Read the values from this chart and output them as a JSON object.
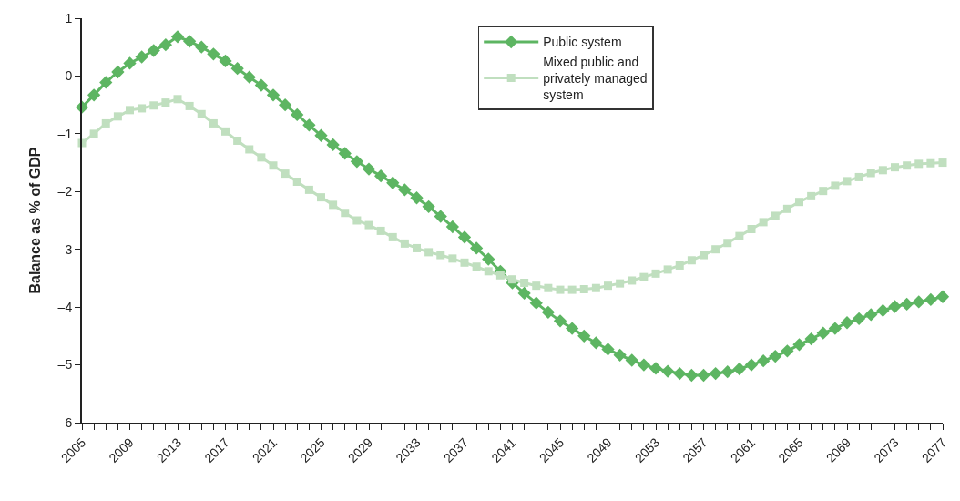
{
  "chart_data": {
    "type": "line",
    "ylabel": "Balance as % of GDP",
    "x": [
      2005,
      2006,
      2007,
      2008,
      2009,
      2010,
      2011,
      2012,
      2013,
      2014,
      2015,
      2016,
      2017,
      2018,
      2019,
      2020,
      2021,
      2022,
      2023,
      2024,
      2025,
      2026,
      2027,
      2028,
      2029,
      2030,
      2031,
      2032,
      2033,
      2034,
      2035,
      2036,
      2037,
      2038,
      2039,
      2040,
      2041,
      2042,
      2043,
      2044,
      2045,
      2046,
      2047,
      2048,
      2049,
      2050,
      2051,
      2052,
      2053,
      2054,
      2055,
      2056,
      2057,
      2058,
      2059,
      2060,
      2061,
      2062,
      2063,
      2064,
      2065,
      2066,
      2067,
      2068,
      2069,
      2070,
      2071,
      2072,
      2073,
      2074,
      2075,
      2076,
      2077
    ],
    "series": [
      {
        "name": "Public system",
        "color": "#5db562",
        "marker": "diamond",
        "values": [
          -0.54,
          -0.33,
          -0.11,
          0.07,
          0.22,
          0.33,
          0.44,
          0.54,
          0.68,
          0.6,
          0.5,
          0.38,
          0.26,
          0.13,
          -0.02,
          -0.16,
          -0.33,
          -0.5,
          -0.67,
          -0.85,
          -1.03,
          -1.19,
          -1.34,
          -1.48,
          -1.61,
          -1.73,
          -1.85,
          -1.97,
          -2.11,
          -2.26,
          -2.43,
          -2.61,
          -2.79,
          -2.98,
          -3.17,
          -3.38,
          -3.58,
          -3.76,
          -3.93,
          -4.09,
          -4.24,
          -4.37,
          -4.5,
          -4.62,
          -4.73,
          -4.83,
          -4.92,
          -5.0,
          -5.06,
          -5.11,
          -5.15,
          -5.18,
          -5.18,
          -5.15,
          -5.12,
          -5.07,
          -5.0,
          -4.93,
          -4.85,
          -4.76,
          -4.65,
          -4.55,
          -4.45,
          -4.37,
          -4.27,
          -4.2,
          -4.13,
          -4.06,
          -3.99,
          -3.95,
          -3.91,
          -3.87,
          -3.82
        ]
      },
      {
        "name": "Mixed public and privately managed system",
        "color": "#c0dfbf",
        "marker": "square",
        "values": [
          -1.16,
          -1.0,
          -0.82,
          -0.7,
          -0.59,
          -0.56,
          -0.51,
          -0.46,
          -0.4,
          -0.52,
          -0.66,
          -0.82,
          -0.96,
          -1.12,
          -1.27,
          -1.41,
          -1.55,
          -1.69,
          -1.83,
          -1.97,
          -2.1,
          -2.23,
          -2.37,
          -2.5,
          -2.58,
          -2.68,
          -2.79,
          -2.9,
          -2.98,
          -3.05,
          -3.1,
          -3.16,
          -3.23,
          -3.3,
          -3.38,
          -3.45,
          -3.52,
          -3.58,
          -3.63,
          -3.67,
          -3.7,
          -3.7,
          -3.69,
          -3.67,
          -3.63,
          -3.59,
          -3.54,
          -3.48,
          -3.42,
          -3.35,
          -3.28,
          -3.19,
          -3.1,
          -3.0,
          -2.89,
          -2.77,
          -2.65,
          -2.53,
          -2.42,
          -2.3,
          -2.18,
          -2.08,
          -1.99,
          -1.9,
          -1.82,
          -1.75,
          -1.68,
          -1.63,
          -1.58,
          -1.55,
          -1.52,
          -1.51,
          -1.5
        ]
      }
    ],
    "xlim": [
      2005,
      2077
    ],
    "xticks": [
      2005,
      {
        "value": 2006,
        "label": null
      },
      {
        "value": 2007,
        "label": null
      },
      {
        "value": 2008,
        "label": null
      },
      2009,
      {
        "value": 2010,
        "label": null
      },
      {
        "value": 2011,
        "label": null
      },
      {
        "value": 2012,
        "label": null
      },
      2013,
      {
        "value": 2014,
        "label": null
      },
      {
        "value": 2015,
        "label": null
      },
      {
        "value": 2016,
        "label": null
      },
      2017,
      {
        "value": 2018,
        "label": null
      },
      {
        "value": 2019,
        "label": null
      },
      {
        "value": 2020,
        "label": null
      },
      2021,
      {
        "value": 2022,
        "label": null
      },
      {
        "value": 2023,
        "label": null
      },
      {
        "value": 2024,
        "label": null
      },
      2025,
      {
        "value": 2026,
        "label": null
      },
      {
        "value": 2027,
        "label": null
      },
      {
        "value": 2028,
        "label": null
      },
      2029,
      {
        "value": 2030,
        "label": null
      },
      {
        "value": 2031,
        "label": null
      },
      {
        "value": 2032,
        "label": null
      },
      2033,
      {
        "value": 2034,
        "label": null
      },
      {
        "value": 2035,
        "label": null
      },
      {
        "value": 2036,
        "label": null
      },
      2037,
      {
        "value": 2038,
        "label": null
      },
      {
        "value": 2039,
        "label": null
      },
      {
        "value": 2040,
        "label": null
      },
      2041,
      {
        "value": 2042,
        "label": null
      },
      {
        "value": 2043,
        "label": null
      },
      {
        "value": 2044,
        "label": null
      },
      2045,
      {
        "value": 2046,
        "label": null
      },
      {
        "value": 2047,
        "label": null
      },
      {
        "value": 2048,
        "label": null
      },
      2049,
      {
        "value": 2050,
        "label": null
      },
      {
        "value": 2051,
        "label": null
      },
      {
        "value": 2052,
        "label": null
      },
      2053,
      {
        "value": 2054,
        "label": null
      },
      {
        "value": 2055,
        "label": null
      },
      {
        "value": 2056,
        "label": null
      },
      2057,
      {
        "value": 2058,
        "label": null
      },
      {
        "value": 2059,
        "label": null
      },
      {
        "value": 2060,
        "label": null
      },
      2061,
      {
        "value": 2062,
        "label": null
      },
      {
        "value": 2063,
        "label": null
      },
      {
        "value": 2064,
        "label": null
      },
      2065,
      {
        "value": 2066,
        "label": null
      },
      {
        "value": 2067,
        "label": null
      },
      {
        "value": 2068,
        "label": null
      },
      2069,
      {
        "value": 2070,
        "label": null
      },
      {
        "value": 2071,
        "label": null
      },
      {
        "value": 2072,
        "label": null
      },
      2073,
      {
        "value": 2074,
        "label": null
      },
      {
        "value": 2075,
        "label": null
      },
      {
        "value": 2076,
        "label": null
      },
      2077
    ],
    "ylim": [
      -6,
      1
    ],
    "yticks": [
      {
        "value": -6,
        "label": "–6"
      },
      {
        "value": -5,
        "label": "–5"
      },
      {
        "value": -4,
        "label": "–4"
      },
      {
        "value": -3,
        "label": "–3"
      },
      {
        "value": -2,
        "label": "–2"
      },
      {
        "value": -1,
        "label": "–1"
      },
      0,
      1
    ],
    "legend": "top right",
    "line_style": "solid"
  }
}
